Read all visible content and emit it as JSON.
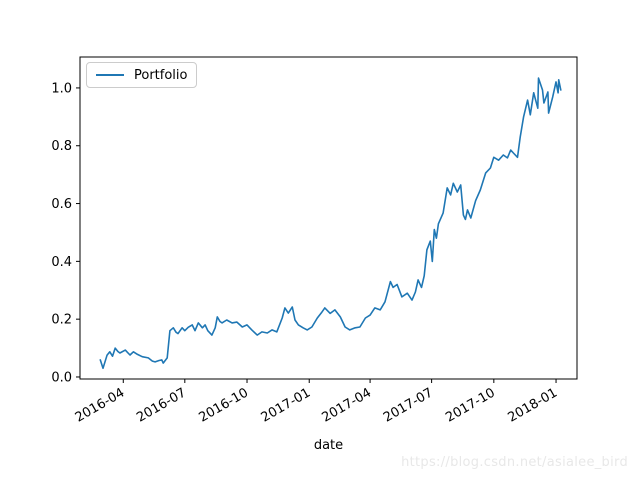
{
  "watermark": {
    "text": "https://blog.csdn.net/asialee_bird"
  },
  "chart_data": {
    "type": "line",
    "title": "",
    "xlabel": "date",
    "ylabel": "",
    "grid": false,
    "legend_position": "upper left",
    "x_ticks": [
      "2016-04",
      "2016-07",
      "2016-10",
      "2017-01",
      "2017-04",
      "2017-07",
      "2017-10",
      "2018-01"
    ],
    "y_ticks": [
      "0.0",
      "0.2",
      "0.4",
      "0.6",
      "0.8",
      "1.0"
    ],
    "xlim": [
      "2016-01-28",
      "2018-02-01"
    ],
    "ylim": [
      -0.007,
      1.107
    ],
    "series": [
      {
        "name": "Portfolio",
        "color": "#1f77b4",
        "points": [
          [
            "2016-02-27",
            0.059
          ],
          [
            "2016-03-02",
            0.03
          ],
          [
            "2016-03-08",
            0.075
          ],
          [
            "2016-03-12",
            0.087
          ],
          [
            "2016-03-16",
            0.072
          ],
          [
            "2016-03-20",
            0.1
          ],
          [
            "2016-03-24",
            0.088
          ],
          [
            "2016-03-27",
            0.083
          ],
          [
            "2016-04-04",
            0.093
          ],
          [
            "2016-04-11",
            0.076
          ],
          [
            "2016-04-16",
            0.087
          ],
          [
            "2016-04-22",
            0.078
          ],
          [
            "2016-04-29",
            0.07
          ],
          [
            "2016-05-08",
            0.066
          ],
          [
            "2016-05-14",
            0.055
          ],
          [
            "2016-05-18",
            0.052
          ],
          [
            "2016-05-24",
            0.057
          ],
          [
            "2016-05-28",
            0.059
          ],
          [
            "2016-05-30",
            0.048
          ],
          [
            "2016-06-05",
            0.066
          ],
          [
            "2016-06-09",
            0.16
          ],
          [
            "2016-06-14",
            0.17
          ],
          [
            "2016-06-18",
            0.155
          ],
          [
            "2016-06-21",
            0.15
          ],
          [
            "2016-06-27",
            0.17
          ],
          [
            "2016-07-01",
            0.16
          ],
          [
            "2016-07-06",
            0.172
          ],
          [
            "2016-07-12",
            0.18
          ],
          [
            "2016-07-16",
            0.16
          ],
          [
            "2016-07-21",
            0.187
          ],
          [
            "2016-07-27",
            0.17
          ],
          [
            "2016-07-31",
            0.18
          ],
          [
            "2016-08-04",
            0.16
          ],
          [
            "2016-08-10",
            0.145
          ],
          [
            "2016-08-15",
            0.17
          ],
          [
            "2016-08-18",
            0.208
          ],
          [
            "2016-08-22",
            0.192
          ],
          [
            "2016-08-25",
            0.187
          ],
          [
            "2016-09-01",
            0.197
          ],
          [
            "2016-09-09",
            0.187
          ],
          [
            "2016-09-16",
            0.19
          ],
          [
            "2016-09-24",
            0.173
          ],
          [
            "2016-10-01",
            0.18
          ],
          [
            "2016-10-08",
            0.163
          ],
          [
            "2016-10-16",
            0.145
          ],
          [
            "2016-10-23",
            0.156
          ],
          [
            "2016-10-31",
            0.152
          ],
          [
            "2016-11-07",
            0.163
          ],
          [
            "2016-11-14",
            0.156
          ],
          [
            "2016-11-22",
            0.204
          ],
          [
            "2016-11-26",
            0.239
          ],
          [
            "2016-12-01",
            0.221
          ],
          [
            "2016-12-07",
            0.242
          ],
          [
            "2016-12-11",
            0.197
          ],
          [
            "2016-12-16",
            0.18
          ],
          [
            "2016-12-23",
            0.17
          ],
          [
            "2016-12-29",
            0.163
          ],
          [
            "2017-01-05",
            0.173
          ],
          [
            "2017-01-13",
            0.204
          ],
          [
            "2017-01-19",
            0.222
          ],
          [
            "2017-01-24",
            0.239
          ],
          [
            "2017-02-01",
            0.22
          ],
          [
            "2017-02-08",
            0.232
          ],
          [
            "2017-02-16",
            0.208
          ],
          [
            "2017-02-23",
            0.173
          ],
          [
            "2017-03-02",
            0.163
          ],
          [
            "2017-03-10",
            0.17
          ],
          [
            "2017-03-17",
            0.173
          ],
          [
            "2017-03-25",
            0.204
          ],
          [
            "2017-04-01",
            0.214
          ],
          [
            "2017-04-08",
            0.239
          ],
          [
            "2017-04-16",
            0.232
          ],
          [
            "2017-04-23",
            0.26
          ],
          [
            "2017-05-01",
            0.33
          ],
          [
            "2017-05-05",
            0.31
          ],
          [
            "2017-05-11",
            0.32
          ],
          [
            "2017-05-18",
            0.277
          ],
          [
            "2017-05-26",
            0.29
          ],
          [
            "2017-06-02",
            0.266
          ],
          [
            "2017-06-07",
            0.294
          ],
          [
            "2017-06-11",
            0.336
          ],
          [
            "2017-06-16",
            0.31
          ],
          [
            "2017-06-20",
            0.35
          ],
          [
            "2017-06-24",
            0.44
          ],
          [
            "2017-06-29",
            0.47
          ],
          [
            "2017-07-02",
            0.4
          ],
          [
            "2017-07-05",
            0.51
          ],
          [
            "2017-07-08",
            0.48
          ],
          [
            "2017-07-11",
            0.53
          ],
          [
            "2017-07-18",
            0.567
          ],
          [
            "2017-07-24",
            0.654
          ],
          [
            "2017-07-29",
            0.63
          ],
          [
            "2017-08-02",
            0.67
          ],
          [
            "2017-08-08",
            0.64
          ],
          [
            "2017-08-13",
            0.664
          ],
          [
            "2017-08-17",
            0.56
          ],
          [
            "2017-08-20",
            0.545
          ],
          [
            "2017-08-23",
            0.578
          ],
          [
            "2017-08-28",
            0.55
          ],
          [
            "2017-09-04",
            0.61
          ],
          [
            "2017-09-11",
            0.647
          ],
          [
            "2017-09-19",
            0.706
          ],
          [
            "2017-09-26",
            0.723
          ],
          [
            "2017-10-01",
            0.76
          ],
          [
            "2017-10-08",
            0.75
          ],
          [
            "2017-10-15",
            0.768
          ],
          [
            "2017-10-21",
            0.758
          ],
          [
            "2017-10-26",
            0.785
          ],
          [
            "2017-10-30",
            0.775
          ],
          [
            "2017-11-05",
            0.76
          ],
          [
            "2017-11-09",
            0.83
          ],
          [
            "2017-11-14",
            0.9
          ],
          [
            "2017-11-20",
            0.958
          ],
          [
            "2017-11-24",
            0.907
          ],
          [
            "2017-11-29",
            0.983
          ],
          [
            "2017-12-05",
            0.93
          ],
          [
            "2017-12-06",
            1.034
          ],
          [
            "2017-12-12",
            0.993
          ],
          [
            "2017-12-14",
            0.948
          ],
          [
            "2017-12-20",
            0.986
          ],
          [
            "2017-12-21",
            0.913
          ],
          [
            "2017-12-27",
            0.969
          ],
          [
            "2018-01-01",
            1.021
          ],
          [
            "2018-01-04",
            0.983
          ],
          [
            "2018-01-05",
            1.028
          ],
          [
            "2018-01-08",
            0.993
          ]
        ]
      }
    ]
  }
}
